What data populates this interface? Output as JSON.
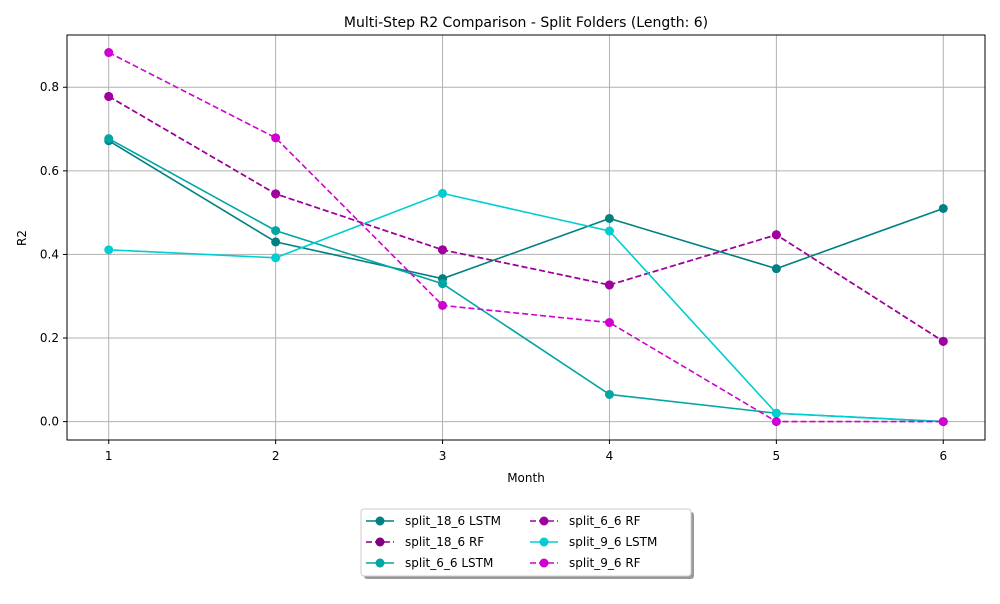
{
  "chart_data": {
    "type": "line",
    "title": "Multi-Step R2 Comparison - Split Folders (Length: 6)",
    "xlabel": "Month",
    "ylabel": "R2",
    "x": [
      1,
      2,
      3,
      4,
      5,
      6
    ],
    "x_ticks": [
      "1",
      "2",
      "3",
      "4",
      "5",
      "6"
    ],
    "y_ticks": [
      "0.0",
      "0.2",
      "0.4",
      "0.6",
      "0.8"
    ],
    "y_tick_values": [
      0.0,
      0.2,
      0.4,
      0.6,
      0.8
    ],
    "xlim": [
      0.75,
      6.25
    ],
    "ylim": [
      -0.044,
      0.925
    ],
    "grid": true,
    "legend_position": "below-center",
    "series": [
      {
        "name": "split_18_6 LSTM",
        "color": "#008080",
        "dash": "solid",
        "values": [
          0.672,
          0.43,
          0.342,
          0.486,
          0.366,
          0.51
        ]
      },
      {
        "name": "split_18_6 RF",
        "color": "#800080",
        "dash": "dashed",
        "values": [
          0.778,
          0.545,
          0.411,
          0.327,
          0.447,
          0.192
        ]
      },
      {
        "name": "split_6_6 LSTM",
        "color": "#00a5a5",
        "dash": "solid",
        "values": [
          0.677,
          0.457,
          0.33,
          0.065,
          0.02,
          0.0
        ]
      },
      {
        "name": "split_6_6 RF",
        "color": "#a000a0",
        "dash": "dashed",
        "values": [
          0.778,
          0.545,
          0.411,
          0.327,
          0.447,
          0.192
        ]
      },
      {
        "name": "split_9_6 LSTM",
        "color": "#00ced1",
        "dash": "solid",
        "values": [
          0.411,
          0.392,
          0.546,
          0.456,
          0.02,
          0.0
        ]
      },
      {
        "name": "split_9_6 RF",
        "color": "#d000d0",
        "dash": "dashed",
        "values": [
          0.883,
          0.679,
          0.278,
          0.237,
          0.0,
          0.0
        ]
      }
    ]
  }
}
